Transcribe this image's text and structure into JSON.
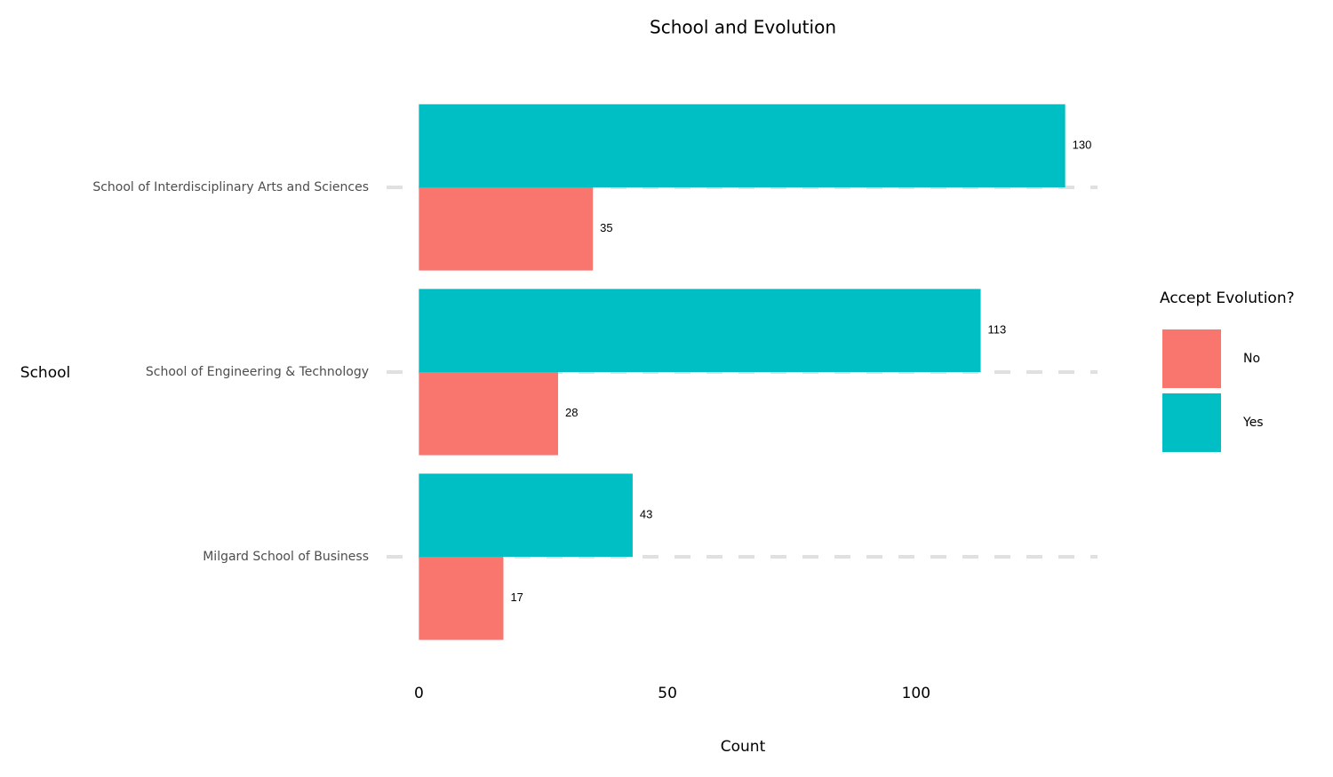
{
  "chart_data": {
    "type": "bar",
    "orientation": "horizontal",
    "title": "School and Evolution",
    "x_label": "Count",
    "y_label": "School",
    "legend_title": "Accept Evolution?",
    "categories": [
      "School of Interdisciplinary Arts and Sciences",
      "School of Engineering & Technology",
      "Milgard School of Business"
    ],
    "series": [
      {
        "name": "No",
        "color": "#F8766D",
        "values": [
          35,
          28,
          17
        ]
      },
      {
        "name": "Yes",
        "color": "#00BFC4",
        "values": [
          130,
          113,
          43
        ]
      }
    ],
    "xlim": [
      -6.5,
      136.5
    ],
    "xticks": [
      0,
      50,
      100
    ],
    "grid": true,
    "legend": "right"
  }
}
